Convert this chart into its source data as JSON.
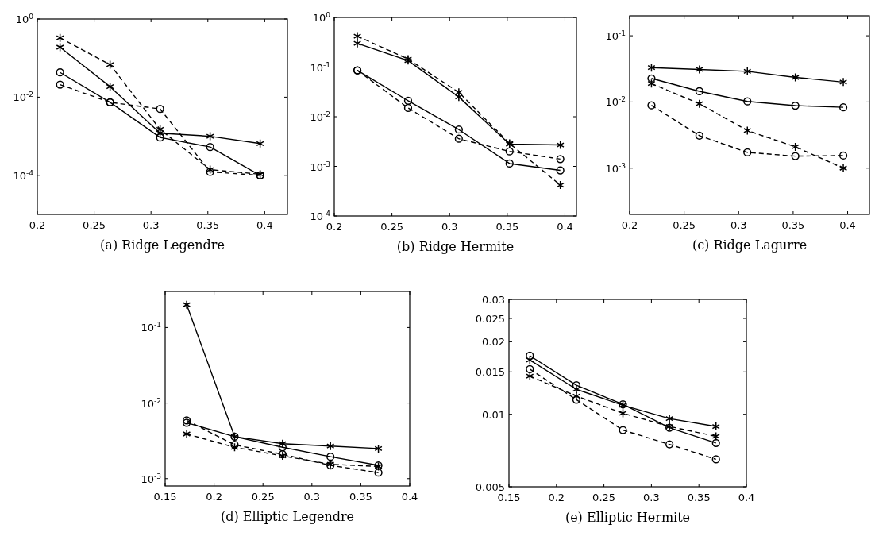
{
  "chart_data": [
    {
      "type": "line",
      "title": "(a) Ridge Legendre",
      "log": true,
      "xlim": [
        0.2,
        0.42
      ],
      "xticks": [
        0.2,
        0.25,
        0.3,
        0.35,
        0.4
      ],
      "ylim": [
        1e-05,
        1
      ],
      "yticks": [
        {
          "value": 1,
          "label": "10$^{0}$"
        },
        {
          "value": 0.01,
          "label": "10$^{-2}$"
        },
        {
          "value": 0.0001,
          "label": "10$^{-4}$"
        }
      ],
      "x": [
        0.22,
        0.264,
        0.308,
        0.352,
        0.396
      ],
      "series": [
        {
          "color": "#000000",
          "marker": "cross",
          "line_style": "solid",
          "values": [
            0.19,
            0.0186,
            0.0012,
            0.001,
            0.00065
          ]
        },
        {
          "color": "#000000",
          "marker": "cross",
          "line_style": "dashed",
          "values": [
            0.33,
            0.068,
            0.0015,
            0.00014,
            0.000107
          ]
        },
        {
          "color": "#000000",
          "marker": "circle",
          "line_style": "solid",
          "values": [
            0.043,
            0.0074,
            0.00093,
            0.00053,
            0.0001
          ]
        },
        {
          "color": "#000000",
          "marker": "circle",
          "line_style": "dashed",
          "values": [
            0.021,
            0.0074,
            0.005,
            0.000123,
            0.0001
          ]
        }
      ]
    },
    {
      "type": "line",
      "title": "(b) Ridge Hermite",
      "log": true,
      "xlim": [
        0.2,
        0.41
      ],
      "xticks": [
        0.2,
        0.25,
        0.3,
        0.35,
        0.4
      ],
      "ylim": [
        0.0001,
        1
      ],
      "yticks": [
        {
          "value": 1,
          "label": "10$^{0}$"
        },
        {
          "value": 0.1,
          "label": "10$^{-1}$"
        },
        {
          "value": 0.01,
          "label": "10$^{-2}$"
        },
        {
          "value": 0.001,
          "label": "10$^{-3}$"
        },
        {
          "value": 0.0001,
          "label": "10$^{-4}$"
        }
      ],
      "x": [
        0.22,
        0.264,
        0.308,
        0.352,
        0.396
      ],
      "series": [
        {
          "color": "#000000",
          "marker": "cross",
          "line_style": "solid",
          "values": [
            0.3,
            0.135,
            0.025,
            0.0028,
            0.0027
          ]
        },
        {
          "color": "#000000",
          "marker": "cross",
          "line_style": "dashed",
          "values": [
            0.42,
            0.145,
            0.031,
            0.0029,
            0.00042
          ]
        },
        {
          "color": "#000000",
          "marker": "circle",
          "line_style": "solid",
          "values": [
            0.086,
            0.021,
            0.0055,
            0.00114,
            0.00083
          ]
        },
        {
          "color": "#000000",
          "marker": "circle",
          "line_style": "dashed",
          "values": [
            0.086,
            0.015,
            0.0036,
            0.002,
            0.0014
          ]
        }
      ]
    },
    {
      "type": "line",
      "title": "(c) Ridge Lagurre",
      "log": true,
      "xlim": [
        0.2,
        0.42
      ],
      "xticks": [
        0.2,
        0.25,
        0.3,
        0.35,
        0.4
      ],
      "ylim": [
        0.0002,
        0.2
      ],
      "yticks": [
        {
          "value": 0.1,
          "label": "10$^{-1}$"
        },
        {
          "value": 0.01,
          "label": "10$^{-2}$"
        },
        {
          "value": 0.001,
          "label": "10$^{-3}$"
        }
      ],
      "x": [
        0.22,
        0.264,
        0.308,
        0.352,
        0.396
      ],
      "series": [
        {
          "color": "#000000",
          "marker": "cross",
          "line_style": "solid",
          "values": [
            0.033,
            0.031,
            0.029,
            0.0235,
            0.02
          ]
        },
        {
          "color": "#000000",
          "marker": "circle",
          "line_style": "solid",
          "values": [
            0.0227,
            0.0145,
            0.0102,
            0.0088,
            0.0083
          ]
        },
        {
          "color": "#000000",
          "marker": "cross",
          "line_style": "dashed",
          "values": [
            0.019,
            0.0094,
            0.0037,
            0.0021,
            0.001
          ]
        },
        {
          "color": "#000000",
          "marker": "circle",
          "line_style": "dashed",
          "values": [
            0.0089,
            0.0031,
            0.00173,
            0.00152,
            0.00155
          ]
        }
      ]
    },
    {
      "type": "line",
      "title": "(d) Elliptic Legendre",
      "log": true,
      "xlim": [
        0.15,
        0.4
      ],
      "xticks": [
        0.15,
        0.2,
        0.25,
        0.3,
        0.35,
        0.4
      ],
      "ylim": [
        0.0008,
        0.3
      ],
      "yticks": [
        {
          "value": 0.1,
          "label": "10$^{-1}$"
        },
        {
          "value": 0.01,
          "label": "10$^{-2}$"
        },
        {
          "value": 0.001,
          "label": "10$^{-3}$"
        }
      ],
      "x": [
        0.172,
        0.221,
        0.27,
        0.319,
        0.368
      ],
      "series": [
        {
          "color": "#000000",
          "marker": "cross",
          "line_style": "solid",
          "values": [
            0.2,
            0.0036,
            0.0029,
            0.0027,
            0.0025
          ]
        },
        {
          "color": "#000000",
          "marker": "circle",
          "line_style": "solid",
          "values": [
            0.0055,
            0.0036,
            0.0026,
            0.00195,
            0.0015
          ]
        },
        {
          "color": "#000000",
          "marker": "circle",
          "line_style": "dashed",
          "values": [
            0.0059,
            0.0028,
            0.0021,
            0.0015,
            0.0012
          ]
        },
        {
          "color": "#000000",
          "marker": "cross",
          "line_style": "dashed",
          "values": [
            0.0039,
            0.0026,
            0.002,
            0.00155,
            0.00145
          ]
        }
      ]
    },
    {
      "type": "line",
      "title": "(e) Elliptic Hermite",
      "log": true,
      "xlim": [
        0.15,
        0.4
      ],
      "xticks": [
        0.15,
        0.2,
        0.25,
        0.3,
        0.35,
        0.4
      ],
      "ylim": [
        0.005,
        0.03
      ],
      "yticks": [
        0.005,
        0.01,
        0.015,
        0.02,
        0.025,
        0.03
      ],
      "x": [
        0.172,
        0.221,
        0.27,
        0.319,
        0.368
      ],
      "series": [
        {
          "color": "#000000",
          "marker": "circle",
          "line_style": "solid",
          "values": [
            0.0175,
            0.0132,
            0.011,
            0.0088,
            0.0076
          ]
        },
        {
          "color": "#000000",
          "marker": "cross",
          "line_style": "solid",
          "values": [
            0.0168,
            0.0127,
            0.0109,
            0.0096,
            0.0089
          ]
        },
        {
          "color": "#000000",
          "marker": "circle",
          "line_style": "dashed",
          "values": [
            0.0154,
            0.0115,
            0.0086,
            0.0075,
            0.0065
          ]
        },
        {
          "color": "#000000",
          "marker": "cross",
          "line_style": "dashed",
          "values": [
            0.0144,
            0.0119,
            0.0101,
            0.0089,
            0.0081
          ]
        }
      ]
    }
  ]
}
